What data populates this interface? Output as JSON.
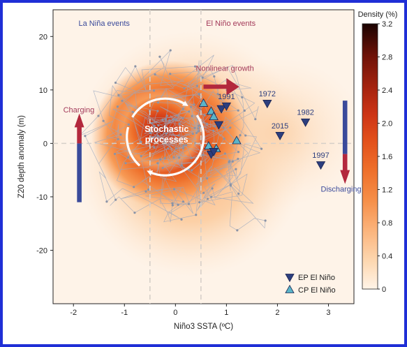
{
  "chart_data": {
    "type": "scatter",
    "title": "",
    "xlabel": "Niño3 SSTA (ºC)",
    "ylabel": "Z20 depth anomaly (m)",
    "xlim": [
      -2.4,
      3.5
    ],
    "ylim": [
      -30,
      25
    ],
    "x_ticks": [
      -2,
      -1,
      0,
      1,
      2,
      3
    ],
    "y_ticks": [
      -20,
      -10,
      0,
      10,
      20
    ],
    "x_threshold_lines": [
      -0.5,
      0.5
    ],
    "y_reference_line": 0,
    "colorbar": {
      "title": "Density (%)",
      "range": [
        0,
        3.2
      ],
      "ticks": [
        0,
        0.4,
        0.8,
        1.2,
        1.6,
        2.0,
        2.4,
        2.8,
        3.2
      ],
      "colors": [
        "#fff4e8",
        "#fdd9b3",
        "#fbb47c",
        "#f6904a",
        "#ee6f2a",
        "#e2501b",
        "#cc3416",
        "#a5230f",
        "#6e1208",
        "#2b0502"
      ]
    },
    "region_labels": {
      "la_nina": "La Niña events",
      "el_nino": "El Niño events"
    },
    "annotations": {
      "charging": "Charging",
      "discharging": "Discharging",
      "nonlinear": "Nonlinear growth",
      "stochastic_line1": "Stochastic",
      "stochastic_line2": "processes"
    },
    "legend": {
      "placement": "bottom-right",
      "entries": [
        "EP El Niño",
        "CP El Niño"
      ]
    },
    "series": [
      {
        "name": "EP El Niño",
        "color": "#2c3e7e",
        "points": [
          {
            "x": 0.9,
            "y": 6.5,
            "label": ""
          },
          {
            "x": 1.0,
            "y": 7.0,
            "label": "1991"
          },
          {
            "x": 0.85,
            "y": 3.5,
            "label": ""
          },
          {
            "x": 0.7,
            "y": -2.0,
            "label": ""
          },
          {
            "x": 0.75,
            "y": -1.5,
            "label": ""
          },
          {
            "x": 1.8,
            "y": 7.5,
            "label": "1972"
          },
          {
            "x": 2.05,
            "y": 1.5,
            "label": "2015"
          },
          {
            "x": 2.55,
            "y": 4.0,
            "label": "1982"
          },
          {
            "x": 2.85,
            "y": -4.0,
            "label": "1997"
          }
        ]
      },
      {
        "name": "CP El Niño",
        "color": "#5ab4c8",
        "points": [
          {
            "x": 0.55,
            "y": 7.5
          },
          {
            "x": 0.7,
            "y": 6.0
          },
          {
            "x": 0.75,
            "y": 5.0
          },
          {
            "x": 0.65,
            "y": -0.5
          },
          {
            "x": 0.8,
            "y": -1.0
          },
          {
            "x": 1.2,
            "y": 0.5
          }
        ]
      }
    ]
  }
}
